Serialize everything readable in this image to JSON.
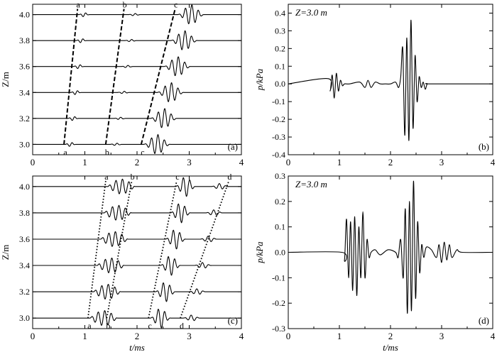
{
  "figure": {
    "panels": [
      "a",
      "b",
      "c",
      "d"
    ]
  },
  "chart_data": [
    {
      "id": "a",
      "type": "line",
      "panel_label": "(a)",
      "xlabel": "",
      "ylabel": "Z/m",
      "xlim": [
        0,
        4
      ],
      "ylim": [
        2.92,
        4.08
      ],
      "xticks": [
        "0",
        "1",
        "2",
        "3",
        "4"
      ],
      "yticks": [
        "3.0",
        "3.2",
        "3.4",
        "3.6",
        "3.8",
        "4.0"
      ],
      "depths": [
        3.0,
        3.2,
        3.4,
        3.6,
        3.8,
        4.0
      ],
      "trace_scale": 0.04,
      "packets": [
        {
          "t0": 0.62,
          "t1": 0.88,
          "f": 9,
          "amp": 0.22,
          "env": "tail"
        },
        {
          "t0": 1.48,
          "t1": 1.78,
          "f": 9,
          "amp": 0.12,
          "env": "tail"
        },
        {
          "t0": 2.12,
          "t1": 2.78,
          "f": 8,
          "amp": 1.0,
          "env": "tail"
        }
      ],
      "markers": [
        {
          "label": "a",
          "t_bottom": 0.6,
          "t_top": 0.86,
          "style": "dashed"
        },
        {
          "label": "b",
          "t_bottom": 1.4,
          "t_top": 1.75,
          "style": "dashed"
        },
        {
          "label": "c",
          "t_bottom": 2.08,
          "t_top": 2.73,
          "style": "dashed"
        }
      ]
    },
    {
      "id": "b",
      "type": "line",
      "panel_label": "(b)",
      "annotation": "Z=3.0 m",
      "xlabel": "",
      "ylabel": "p/kPa",
      "xlim": [
        0,
        4
      ],
      "ylim": [
        -0.4,
        0.45
      ],
      "xticks": [
        "0",
        "1",
        "2",
        "3",
        "4"
      ],
      "yticks": [
        "-0.4",
        "-0.3",
        "-0.2",
        "-0.1",
        "0.0",
        "0.1",
        "0.2",
        "0.3",
        "0.4"
      ],
      "series": [
        {
          "x": [
            0,
            0.78,
            0.82,
            0.86,
            0.9,
            0.94,
            0.98,
            1.02,
            1.06,
            1.1,
            1.2,
            1.4,
            1.5,
            1.56,
            1.62,
            1.7,
            1.8,
            1.9,
            2.0,
            2.1,
            2.16,
            2.2,
            2.24,
            2.28,
            2.32,
            2.36,
            2.4,
            2.44,
            2.48,
            2.52,
            2.56,
            2.6,
            2.64,
            2.68,
            2.72,
            2.8,
            4.0
          ],
          "y": [
            0,
            0.03,
            -0.04,
            0.05,
            -0.08,
            0.06,
            -0.04,
            0.02,
            -0.01,
            0.0,
            0.0,
            0.01,
            -0.02,
            0.02,
            -0.02,
            0.01,
            0.0,
            0.0,
            0.0,
            0.01,
            -0.02,
            0.04,
            0.2,
            -0.29,
            0.26,
            -0.32,
            0.36,
            -0.25,
            0.16,
            -0.1,
            0.04,
            -0.02,
            0.01,
            -0.03,
            0.0,
            0.0,
            0
          ]
        }
      ]
    },
    {
      "id": "c",
      "type": "line",
      "panel_label": "(c)",
      "xlabel": "t/ms",
      "ylabel": "Z/m",
      "xlim": [
        0,
        4
      ],
      "ylim": [
        2.92,
        4.08
      ],
      "xticks": [
        "0",
        "1",
        "2",
        "3",
        "4"
      ],
      "yticks": [
        "3.0",
        "3.2",
        "3.4",
        "3.6",
        "3.8",
        "4.0"
      ],
      "depths": [
        3.0,
        3.2,
        3.4,
        3.6,
        3.8,
        4.0
      ],
      "trace_scale": 0.04,
      "packets": [
        {
          "t0": 1.1,
          "t1": 1.62,
          "f": 8,
          "amp": 0.75,
          "env": "flat"
        },
        {
          "t0": 2.25,
          "t1": 2.75,
          "f": 8,
          "amp": 1.0,
          "env": "tail"
        },
        {
          "t0": 2.88,
          "t1": 3.3,
          "f": 8,
          "amp": 0.3,
          "env": "tail"
        }
      ],
      "markers": [
        {
          "label": "a",
          "t_bottom": 1.06,
          "t_top": 1.4,
          "style": "dotted"
        },
        {
          "label": "b",
          "t_bottom": 1.42,
          "t_top": 1.9,
          "style": "dotted"
        },
        {
          "label": "c",
          "t_bottom": 2.22,
          "t_top": 2.76,
          "style": "dotted"
        },
        {
          "label": "d",
          "t_bottom": 2.83,
          "t_top": 3.76,
          "style": "dotted"
        }
      ]
    },
    {
      "id": "d",
      "type": "line",
      "panel_label": "(d)",
      "annotation": "Z=3.0 m",
      "xlabel": "t/ms",
      "ylabel": "p/kPa",
      "xlim": [
        0,
        4
      ],
      "ylim": [
        -0.3,
        0.3
      ],
      "xticks": [
        "0",
        "1",
        "2",
        "3",
        "4"
      ],
      "yticks": [
        "-0.3",
        "-0.2",
        "-0.1",
        "0.0",
        "0.1",
        "0.2",
        "0.3"
      ],
      "series": [
        {
          "x": [
            0,
            1.05,
            1.1,
            1.14,
            1.18,
            1.22,
            1.26,
            1.3,
            1.34,
            1.38,
            1.42,
            1.46,
            1.5,
            1.54,
            1.58,
            1.62,
            1.7,
            1.8,
            1.95,
            2.1,
            2.15,
            2.2,
            2.25,
            2.29,
            2.33,
            2.37,
            2.41,
            2.45,
            2.49,
            2.53,
            2.57,
            2.61,
            2.65,
            2.7,
            2.8,
            2.9,
            2.95,
            3.0,
            3.05,
            3.1,
            3.15,
            3.2,
            3.3,
            3.4,
            4.0
          ],
          "y": [
            0,
            0.0,
            -0.03,
            0.13,
            -0.1,
            0.12,
            -0.15,
            0.14,
            -0.17,
            0.1,
            -0.1,
            0.16,
            -0.1,
            0.05,
            -0.02,
            0.0,
            0.01,
            -0.01,
            0.01,
            0.0,
            -0.02,
            0.05,
            -0.1,
            0.17,
            -0.24,
            0.2,
            -0.23,
            0.28,
            -0.18,
            0.12,
            -0.08,
            0.03,
            -0.02,
            0.02,
            0.01,
            -0.02,
            0.03,
            -0.04,
            0.04,
            -0.03,
            0.03,
            -0.02,
            0.01,
            0.0,
            0
          ]
        }
      ]
    }
  ]
}
